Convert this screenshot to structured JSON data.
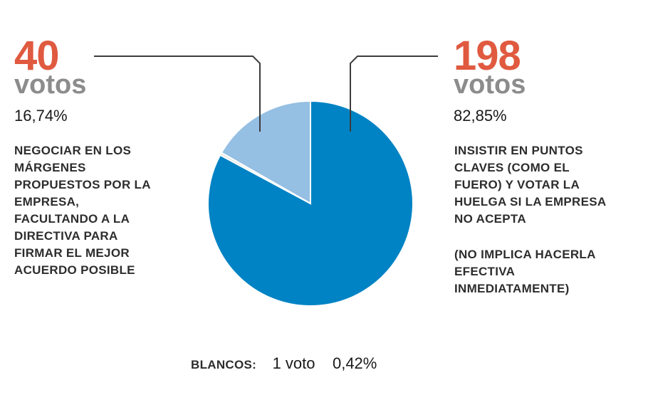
{
  "colors": {
    "accent_number": "#e05a40",
    "slice_insistir": "#0083c4",
    "slice_negociar": "#95bfe3",
    "slice_blancos": "#e6e6e6",
    "leader_line": "#3c3c3c"
  },
  "left": {
    "count": "40",
    "unit": "votos",
    "percent": "16,74%",
    "description": [
      "NEGOCIAR EN LOS",
      "MÁRGENES",
      "PROPUESTOS POR LA",
      "EMPRESA,",
      "FACULTANDO A LA",
      "DIRECTIVA PARA",
      "FIRMAR EL MEJOR",
      "ACUERDO POSIBLE"
    ]
  },
  "right": {
    "count": "198",
    "unit": "votos",
    "percent": "82,85%",
    "description": [
      "INSISTIR EN PUNTOS",
      "CLAVES (COMO EL",
      "FUERO) Y VOTAR LA",
      "HUELGA SI LA EMPRESA",
      "NO ACEPTA"
    ],
    "note": [
      "(NO IMPLICA HACERLA",
      "EFECTIVA",
      "INMEDIATAMENTE)"
    ]
  },
  "footer": {
    "label": "BLANCOS:",
    "count": "1 voto",
    "percent": "0,42%"
  },
  "chart_data": {
    "type": "pie",
    "slices": [
      {
        "key": "insistir",
        "value": 198,
        "percent": 82.85
      },
      {
        "key": "blancos",
        "value": 1,
        "percent": 0.42
      },
      {
        "key": "negociar",
        "value": 40,
        "percent": 16.74
      }
    ],
    "start": "12 o'clock",
    "direction": "clockwise"
  }
}
